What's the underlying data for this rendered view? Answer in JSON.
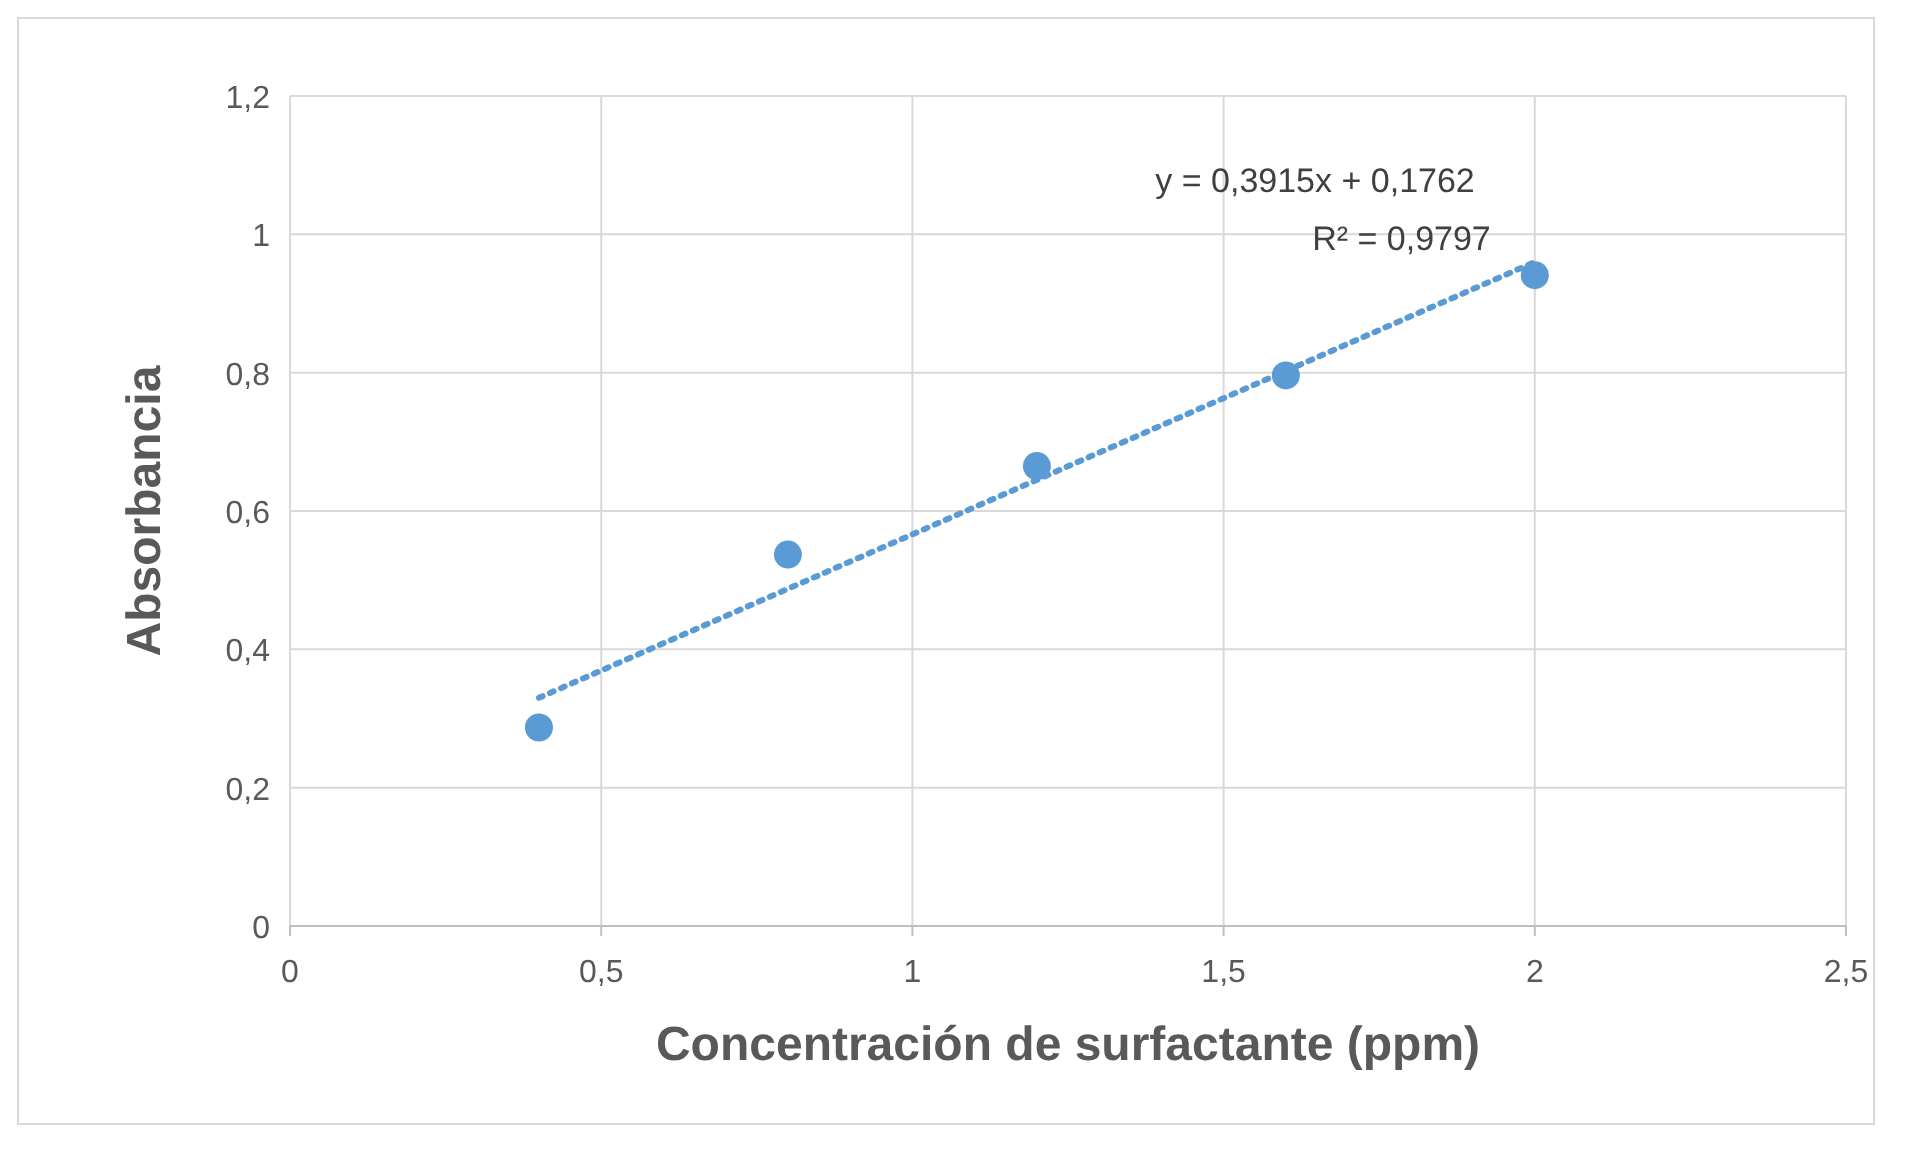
{
  "chart_data": {
    "type": "scatter",
    "xlabel": "Concentración de surfactante (ppm)",
    "ylabel": "Absorbancia",
    "xlim": [
      0,
      2.5
    ],
    "ylim": [
      0,
      1.2
    ],
    "xticks": [
      0,
      {
        "value": 0.5,
        "label": "0,5"
      },
      1,
      {
        "value": 1.5,
        "label": "1,5"
      },
      2,
      {
        "value": 2.5,
        "label": "2,5"
      }
    ],
    "yticks": [
      0,
      {
        "value": 0.2,
        "label": "0,2"
      },
      {
        "value": 0.4,
        "label": "0,4"
      },
      {
        "value": 0.6,
        "label": "0,6"
      },
      {
        "value": 0.8,
        "label": "0,8"
      },
      1,
      {
        "value": 1.2,
        "label": "1,2"
      }
    ],
    "grid": true,
    "marker": "circle",
    "series": [
      {
        "type": "line",
        "color": "#5b9bd5",
        "line_style": "dotted",
        "marker": "none",
        "x": [
          0.4,
          2.0
        ],
        "values": [
          0.33,
          0.96
        ]
      },
      {
        "color": "#5b9bd5",
        "x": [
          0.4,
          0.8,
          1.2,
          1.6,
          2.0
        ],
        "values": [
          0.287,
          0.537,
          0.665,
          0.796,
          0.941
        ]
      }
    ],
    "annotations": [
      "y = 0,3915x + 0,1762",
      "R² = 0,9797"
    ]
  }
}
